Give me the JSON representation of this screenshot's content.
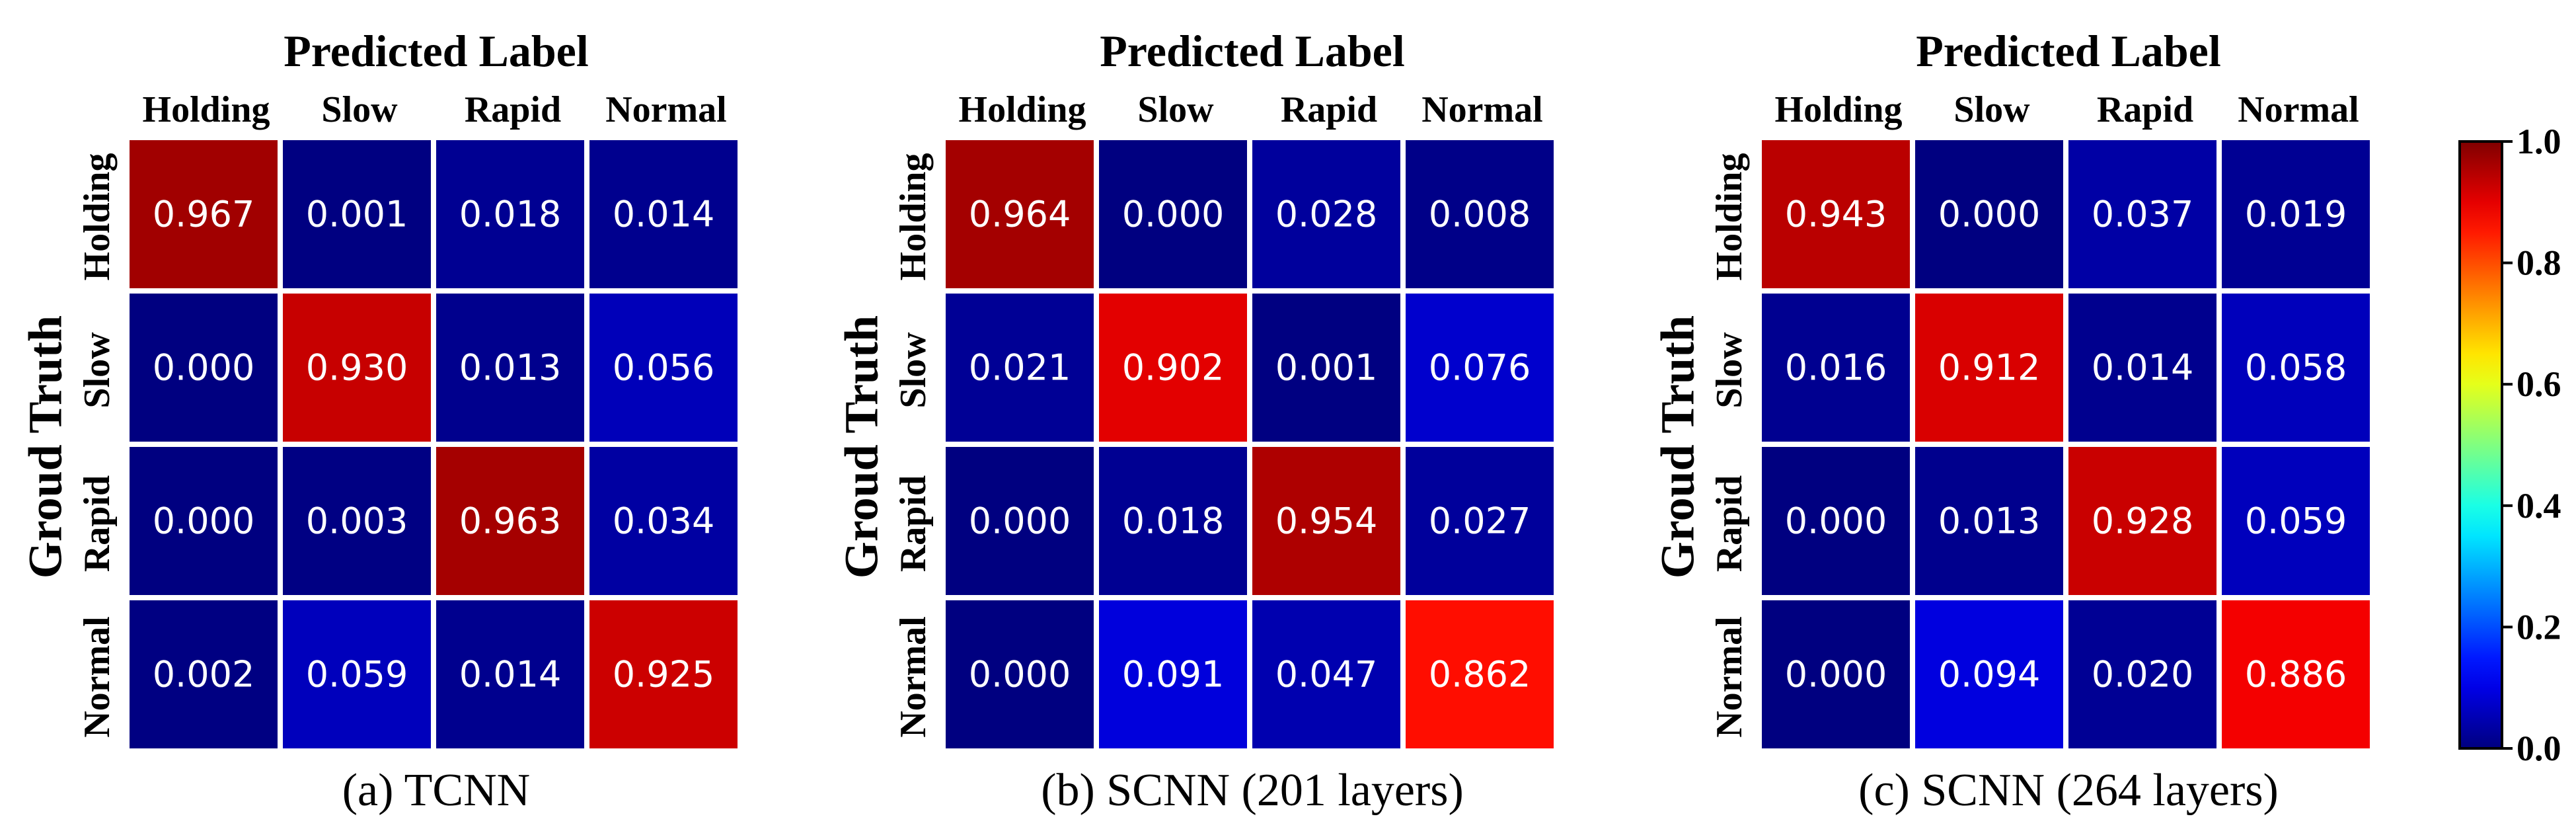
{
  "chart_data": [
    {
      "type": "heatmap",
      "top_label": "Predicted Label",
      "y_title": "Groud Truth",
      "caption": "(a) TCNN",
      "x_categories": [
        "Holding",
        "Slow",
        "Rapid",
        "Normal"
      ],
      "y_categories": [
        "Holding",
        "Slow",
        "Rapid",
        "Normal"
      ],
      "values": [
        [
          0.967,
          0.001,
          0.018,
          0.014
        ],
        [
          0.0,
          0.93,
          0.013,
          0.056
        ],
        [
          0.0,
          0.003,
          0.963,
          0.034
        ],
        [
          0.002,
          0.059,
          0.014,
          0.925
        ]
      ],
      "value_labels": [
        [
          "0.967",
          "0.001",
          "0.018",
          "0.014"
        ],
        [
          "0.000",
          "0.930",
          "0.013",
          "0.056"
        ],
        [
          "0.000",
          "0.003",
          "0.963",
          "0.034"
        ],
        [
          "0.002",
          "0.059",
          "0.014",
          "0.925"
        ]
      ]
    },
    {
      "type": "heatmap",
      "top_label": "Predicted Label",
      "y_title": "Groud Truth",
      "caption": "(b) SCNN (201 layers)",
      "x_categories": [
        "Holding",
        "Slow",
        "Rapid",
        "Normal"
      ],
      "y_categories": [
        "Holding",
        "Slow",
        "Rapid",
        "Normal"
      ],
      "values": [
        [
          0.964,
          0.0,
          0.028,
          0.008
        ],
        [
          0.021,
          0.902,
          0.001,
          0.076
        ],
        [
          0.0,
          0.018,
          0.954,
          0.027
        ],
        [
          0.0,
          0.091,
          0.047,
          0.862
        ]
      ],
      "value_labels": [
        [
          "0.964",
          "0.000",
          "0.028",
          "0.008"
        ],
        [
          "0.021",
          "0.902",
          "0.001",
          "0.076"
        ],
        [
          "0.000",
          "0.018",
          "0.954",
          "0.027"
        ],
        [
          "0.000",
          "0.091",
          "0.047",
          "0.862"
        ]
      ]
    },
    {
      "type": "heatmap",
      "top_label": "Predicted Label",
      "y_title": "Groud Truth",
      "caption": "(c) SCNN (264 layers)",
      "x_categories": [
        "Holding",
        "Slow",
        "Rapid",
        "Normal"
      ],
      "y_categories": [
        "Holding",
        "Slow",
        "Rapid",
        "Normal"
      ],
      "values": [
        [
          0.943,
          0.0,
          0.037,
          0.019
        ],
        [
          0.016,
          0.912,
          0.014,
          0.058
        ],
        [
          0.0,
          0.013,
          0.928,
          0.059
        ],
        [
          0.0,
          0.094,
          0.02,
          0.886
        ]
      ],
      "value_labels": [
        [
          "0.943",
          "0.000",
          "0.037",
          "0.019"
        ],
        [
          "0.016",
          "0.912",
          "0.014",
          "0.058"
        ],
        [
          "0.000",
          "0.013",
          "0.928",
          "0.059"
        ],
        [
          "0.000",
          "0.094",
          "0.020",
          "0.886"
        ]
      ]
    }
  ],
  "colorbar": {
    "colormap": "jet",
    "range": [
      0.0,
      1.0
    ],
    "ticks": [
      "0.0",
      "0.2",
      "0.4",
      "0.6",
      "0.8",
      "1.0"
    ],
    "tick_values": [
      0.0,
      0.2,
      0.4,
      0.6,
      0.8,
      1.0
    ]
  },
  "colors": {
    "cell_text": "#ffffff",
    "background": "#ffffff",
    "text": "#000000"
  }
}
